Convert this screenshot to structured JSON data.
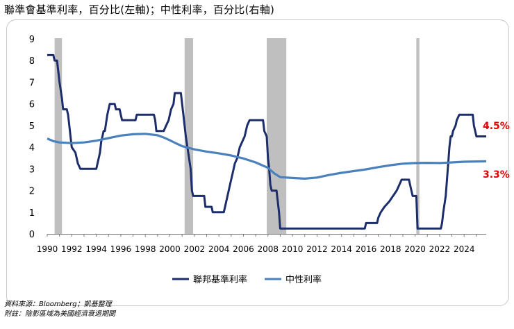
{
  "title": "聯準會基準利率，百分比(左軸)；中性利率，百分比(右軸)",
  "source_lines": [
    "資料來源：Bloomberg；凱基整理",
    "附註：陰影區域為美國經濟衰退期間"
  ],
  "chart_data": {
    "type": "line",
    "x_ticks": [
      "1990",
      "1992",
      "1994",
      "1996",
      "1998",
      "2000",
      "2002",
      "2004",
      "2006",
      "2008",
      "2010",
      "2012",
      "2014",
      "2016",
      "2018",
      "2020",
      "2022",
      "2024"
    ],
    "y_ticks": [
      "0",
      "1",
      "2",
      "3",
      "4",
      "5",
      "6",
      "7",
      "8",
      "9"
    ],
    "ylim": [
      0,
      9
    ],
    "xlim": [
      1990,
      2025.8
    ],
    "recessions": [
      [
        1990.6,
        1991.2
      ],
      [
        2001.2,
        2001.9
      ],
      [
        2007.9,
        2009.5
      ],
      [
        2020.1,
        2020.35
      ]
    ],
    "series": [
      {
        "name": "聯邦基準利率",
        "color": "#1c2d6b",
        "end_label": "4.5%",
        "points": [
          [
            1990.0,
            8.25
          ],
          [
            1990.5,
            8.25
          ],
          [
            1990.6,
            8.0
          ],
          [
            1990.8,
            8.0
          ],
          [
            1990.9,
            7.5
          ],
          [
            1991.0,
            7.0
          ],
          [
            1991.2,
            6.25
          ],
          [
            1991.3,
            5.75
          ],
          [
            1991.6,
            5.75
          ],
          [
            1991.7,
            5.5
          ],
          [
            1991.8,
            5.0
          ],
          [
            1991.9,
            4.5
          ],
          [
            1992.0,
            4.0
          ],
          [
            1992.3,
            3.75
          ],
          [
            1992.5,
            3.25
          ],
          [
            1992.7,
            3.0
          ],
          [
            1994.0,
            3.0
          ],
          [
            1994.1,
            3.25
          ],
          [
            1994.3,
            3.75
          ],
          [
            1994.4,
            4.25
          ],
          [
            1994.6,
            4.75
          ],
          [
            1994.7,
            4.75
          ],
          [
            1994.9,
            5.5
          ],
          [
            1995.1,
            6.0
          ],
          [
            1995.5,
            6.0
          ],
          [
            1995.6,
            5.75
          ],
          [
            1995.9,
            5.75
          ],
          [
            1996.0,
            5.5
          ],
          [
            1996.1,
            5.25
          ],
          [
            1997.2,
            5.25
          ],
          [
            1997.3,
            5.5
          ],
          [
            1998.7,
            5.5
          ],
          [
            1998.8,
            5.25
          ],
          [
            1998.9,
            4.75
          ],
          [
            1999.5,
            4.75
          ],
          [
            1999.7,
            5.0
          ],
          [
            1999.9,
            5.25
          ],
          [
            2000.1,
            5.75
          ],
          [
            2000.3,
            6.0
          ],
          [
            2000.4,
            6.5
          ],
          [
            2000.9,
            6.5
          ],
          [
            2001.0,
            6.0
          ],
          [
            2001.1,
            5.5
          ],
          [
            2001.3,
            4.5
          ],
          [
            2001.5,
            3.75
          ],
          [
            2001.7,
            3.0
          ],
          [
            2001.8,
            2.0
          ],
          [
            2001.9,
            1.75
          ],
          [
            2002.8,
            1.75
          ],
          [
            2002.9,
            1.25
          ],
          [
            2003.4,
            1.25
          ],
          [
            2003.5,
            1.0
          ],
          [
            2004.4,
            1.0
          ],
          [
            2004.5,
            1.25
          ],
          [
            2004.7,
            1.75
          ],
          [
            2004.9,
            2.25
          ],
          [
            2005.1,
            2.75
          ],
          [
            2005.3,
            3.25
          ],
          [
            2005.5,
            3.5
          ],
          [
            2005.7,
            4.0
          ],
          [
            2005.9,
            4.25
          ],
          [
            2006.1,
            4.5
          ],
          [
            2006.3,
            5.0
          ],
          [
            2006.5,
            5.25
          ],
          [
            2007.6,
            5.25
          ],
          [
            2007.7,
            4.75
          ],
          [
            2007.9,
            4.5
          ],
          [
            2008.0,
            3.5
          ],
          [
            2008.1,
            3.0
          ],
          [
            2008.2,
            2.25
          ],
          [
            2008.3,
            2.0
          ],
          [
            2008.7,
            2.0
          ],
          [
            2008.8,
            1.5
          ],
          [
            2008.9,
            1.0
          ],
          [
            2009.0,
            0.25
          ],
          [
            2015.9,
            0.25
          ],
          [
            2016.0,
            0.5
          ],
          [
            2016.9,
            0.5
          ],
          [
            2017.0,
            0.75
          ],
          [
            2017.2,
            1.0
          ],
          [
            2017.5,
            1.25
          ],
          [
            2017.9,
            1.5
          ],
          [
            2018.2,
            1.75
          ],
          [
            2018.5,
            2.0
          ],
          [
            2018.7,
            2.25
          ],
          [
            2018.9,
            2.5
          ],
          [
            2019.5,
            2.5
          ],
          [
            2019.6,
            2.25
          ],
          [
            2019.7,
            2.0
          ],
          [
            2019.8,
            1.75
          ],
          [
            2020.1,
            1.75
          ],
          [
            2020.2,
            0.25
          ],
          [
            2022.1,
            0.25
          ],
          [
            2022.2,
            0.5
          ],
          [
            2022.3,
            1.0
          ],
          [
            2022.5,
            1.75
          ],
          [
            2022.6,
            2.5
          ],
          [
            2022.7,
            3.25
          ],
          [
            2022.8,
            4.0
          ],
          [
            2022.9,
            4.5
          ],
          [
            2023.0,
            4.5
          ],
          [
            2023.1,
            4.75
          ],
          [
            2023.3,
            5.0
          ],
          [
            2023.4,
            5.25
          ],
          [
            2023.6,
            5.5
          ],
          [
            2024.7,
            5.5
          ],
          [
            2024.8,
            5.0
          ],
          [
            2024.9,
            4.75
          ],
          [
            2025.0,
            4.5
          ],
          [
            2025.8,
            4.5
          ]
        ]
      },
      {
        "name": "中性利率",
        "color": "#4a81bd",
        "end_label": "3.3%",
        "points": [
          [
            1990.0,
            4.4
          ],
          [
            1990.5,
            4.28
          ],
          [
            1991.0,
            4.22
          ],
          [
            1992.0,
            4.19
          ],
          [
            1993.0,
            4.22
          ],
          [
            1994.0,
            4.3
          ],
          [
            1995.0,
            4.42
          ],
          [
            1996.0,
            4.54
          ],
          [
            1997.0,
            4.6
          ],
          [
            1998.0,
            4.62
          ],
          [
            1999.0,
            4.55
          ],
          [
            1999.5,
            4.45
          ],
          [
            2000.0,
            4.32
          ],
          [
            2000.5,
            4.18
          ],
          [
            2001.0,
            4.05
          ],
          [
            2002.0,
            3.9
          ],
          [
            2003.0,
            3.8
          ],
          [
            2004.0,
            3.72
          ],
          [
            2005.0,
            3.62
          ],
          [
            2006.0,
            3.48
          ],
          [
            2007.0,
            3.3
          ],
          [
            2008.0,
            3.05
          ],
          [
            2008.5,
            2.8
          ],
          [
            2009.0,
            2.62
          ],
          [
            2010.0,
            2.58
          ],
          [
            2011.0,
            2.55
          ],
          [
            2012.0,
            2.6
          ],
          [
            2013.0,
            2.72
          ],
          [
            2014.0,
            2.82
          ],
          [
            2015.0,
            2.9
          ],
          [
            2016.0,
            2.98
          ],
          [
            2017.0,
            3.08
          ],
          [
            2018.0,
            3.17
          ],
          [
            2019.0,
            3.24
          ],
          [
            2020.0,
            3.27
          ],
          [
            2021.0,
            3.28
          ],
          [
            2022.0,
            3.27
          ],
          [
            2023.0,
            3.3
          ],
          [
            2024.0,
            3.33
          ],
          [
            2025.8,
            3.35
          ]
        ]
      }
    ],
    "legend": "bottom"
  }
}
